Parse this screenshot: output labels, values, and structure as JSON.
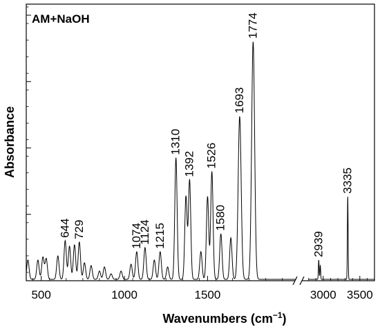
{
  "chart_data": {
    "type": "line",
    "title": "",
    "legend_label": "AM+NaOH",
    "xlabel": "Wavenumbers (cm",
    "xlabel_sup": "−1",
    "xlabel_close": ")",
    "ylabel": "Absorbance",
    "grid": false,
    "legend_position": "top-left",
    "x_axis_break": {
      "after": 2000,
      "resume_at": 2800
    },
    "xlim_left_segment": [
      410,
      2030
    ],
    "xlim_right_segment": [
      2700,
      3700
    ],
    "ylim": [
      0,
      1.0
    ],
    "x_tick_labels": [
      "500",
      "1000",
      "1500",
      "3000",
      "3500"
    ],
    "x_tick_values": [
      500,
      1000,
      1500,
      3000,
      3500
    ],
    "y_major_ticks": [
      0.0,
      0.24,
      0.48,
      0.72,
      0.96
    ],
    "peaks": [
      {
        "x": 420,
        "y": 0.07
      },
      {
        "x": 480,
        "y": 0.07
      },
      {
        "x": 510,
        "y": 0.08
      },
      {
        "x": 530,
        "y": 0.075
      },
      {
        "x": 600,
        "y": 0.085
      },
      {
        "x": 644,
        "y": 0.14
      },
      {
        "x": 670,
        "y": 0.12
      },
      {
        "x": 700,
        "y": 0.125
      },
      {
        "x": 729,
        "y": 0.135
      },
      {
        "x": 760,
        "y": 0.06
      },
      {
        "x": 800,
        "y": 0.05
      },
      {
        "x": 850,
        "y": 0.03
      },
      {
        "x": 880,
        "y": 0.045
      },
      {
        "x": 920,
        "y": 0.02
      },
      {
        "x": 980,
        "y": 0.03
      },
      {
        "x": 1040,
        "y": 0.055
      },
      {
        "x": 1074,
        "y": 0.1
      },
      {
        "x": 1124,
        "y": 0.115
      },
      {
        "x": 1180,
        "y": 0.07
      },
      {
        "x": 1215,
        "y": 0.1
      },
      {
        "x": 1260,
        "y": 0.045
      },
      {
        "x": 1310,
        "y": 0.44
      },
      {
        "x": 1370,
        "y": 0.3
      },
      {
        "x": 1392,
        "y": 0.36
      },
      {
        "x": 1460,
        "y": 0.1
      },
      {
        "x": 1500,
        "y": 0.3
      },
      {
        "x": 1526,
        "y": 0.39
      },
      {
        "x": 1580,
        "y": 0.165
      },
      {
        "x": 1640,
        "y": 0.15
      },
      {
        "x": 1693,
        "y": 0.59
      },
      {
        "x": 1774,
        "y": 0.86
      },
      {
        "x": 2939,
        "y": 0.07
      },
      {
        "x": 2960,
        "y": 0.05
      },
      {
        "x": 3335,
        "y": 0.3
      }
    ],
    "peak_labels": [
      {
        "text": "644",
        "x": 644,
        "y": 0.14
      },
      {
        "text": "729",
        "x": 729,
        "y": 0.135
      },
      {
        "text": "1074",
        "x": 1074,
        "y": 0.1
      },
      {
        "text": "1124",
        "x": 1124,
        "y": 0.115
      },
      {
        "text": "1215",
        "x": 1215,
        "y": 0.1
      },
      {
        "text": "1310",
        "x": 1310,
        "y": 0.44
      },
      {
        "text": "1392",
        "x": 1392,
        "y": 0.36
      },
      {
        "text": "1526",
        "x": 1526,
        "y": 0.39
      },
      {
        "text": "1580",
        "x": 1580,
        "y": 0.165
      },
      {
        "text": "1693",
        "x": 1693,
        "y": 0.59
      },
      {
        "text": "1774",
        "x": 1774,
        "y": 0.86
      },
      {
        "text": "2939",
        "x": 2939,
        "y": 0.07
      },
      {
        "text": "3335",
        "x": 3335,
        "y": 0.3
      }
    ]
  }
}
